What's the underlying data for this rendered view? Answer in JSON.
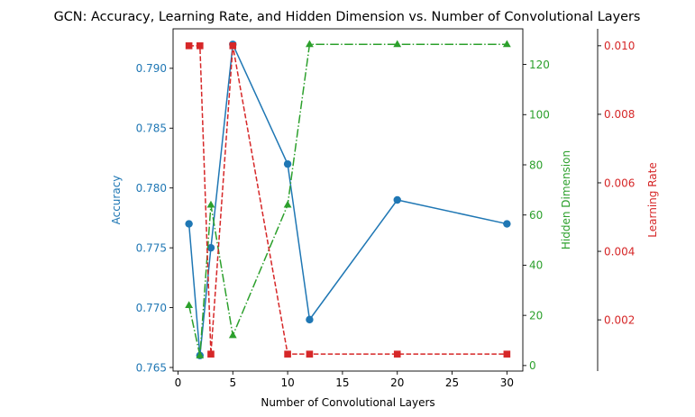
{
  "chart_data": {
    "type": "line",
    "title": "GCN: Accuracy, Learning Rate, and Hidden Dimension vs. Number of Convolutional Layers",
    "xlabel": "Number of Convolutional Layers",
    "xlim": [
      -0.45,
      31.45
    ],
    "xticks": [
      0,
      5,
      10,
      15,
      20,
      25,
      30
    ],
    "x": [
      1,
      2,
      3,
      5,
      10,
      12,
      20,
      30
    ],
    "grid": false,
    "axes": {
      "accuracy": {
        "label": "Accuracy",
        "color": "#1f77b4",
        "lim": [
          0.7647,
          0.7933
        ],
        "ticks": [
          0.765,
          0.77,
          0.775,
          0.78,
          0.785,
          0.79
        ],
        "tick_labels": [
          "0.765",
          "0.770",
          "0.775",
          "0.780",
          "0.785",
          "0.790"
        ]
      },
      "hidden_dim": {
        "label": "Hidden Dimension",
        "color": "#2ca02c",
        "lim": [
          -2.2,
          134.2
        ],
        "ticks": [
          0,
          20,
          40,
          60,
          80,
          100,
          120
        ],
        "tick_labels": [
          "0",
          "20",
          "40",
          "60",
          "80",
          "100",
          "120"
        ]
      },
      "learning_rate": {
        "label": "Learning Rate",
        "color": "#d62728",
        "lim": [
          0.000505,
          0.010495
        ],
        "ticks": [
          0.002,
          0.004,
          0.006,
          0.008,
          0.01
        ],
        "tick_labels": [
          "0.002",
          "0.004",
          "0.006",
          "0.008",
          "0.010"
        ]
      }
    },
    "series": [
      {
        "axis": "accuracy",
        "color": "#1f77b4",
        "marker": "circle",
        "linestyle": "solid",
        "values": [
          0.777,
          0.766,
          0.775,
          0.792,
          0.782,
          0.769,
          0.779,
          0.777
        ]
      },
      {
        "axis": "hidden_dim",
        "color": "#2ca02c",
        "marker": "triangle",
        "linestyle": "dashdot",
        "values": [
          24,
          4,
          64,
          12,
          64,
          128,
          128,
          128
        ]
      },
      {
        "axis": "learning_rate",
        "color": "#d62728",
        "marker": "square",
        "linestyle": "dashed",
        "values": [
          0.01,
          0.01,
          0.001,
          0.01,
          0.001,
          0.001,
          0.001,
          0.001
        ]
      }
    ]
  }
}
